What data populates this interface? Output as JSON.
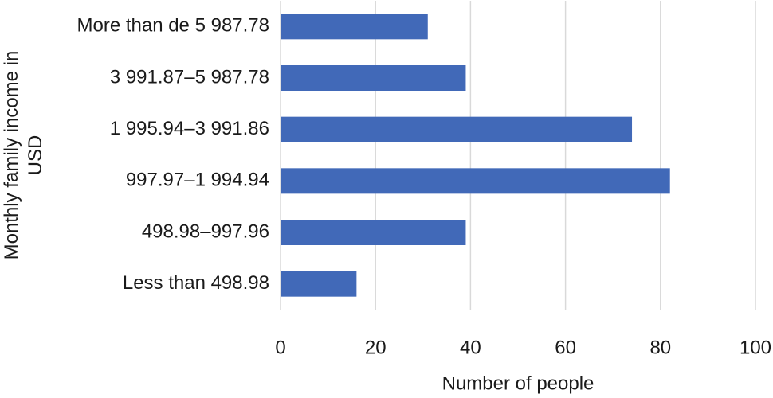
{
  "chart_data": {
    "type": "barh",
    "xlabel": "Number of people",
    "ylabel": "Monthly family income in USD",
    "categories": [
      "More than de 5 987.78",
      "3 991.87–5 987.78",
      "1 995.94–3 991.86",
      "997.97–1 994.94",
      "498.98–997.96",
      "Less than 498.98"
    ],
    "values": [
      31,
      39,
      74,
      82,
      39,
      16
    ],
    "color": "#4169b8",
    "xlim": [
      0,
      100
    ],
    "xticks": [
      0,
      20,
      40,
      60,
      80,
      100
    ],
    "grid": true
  }
}
